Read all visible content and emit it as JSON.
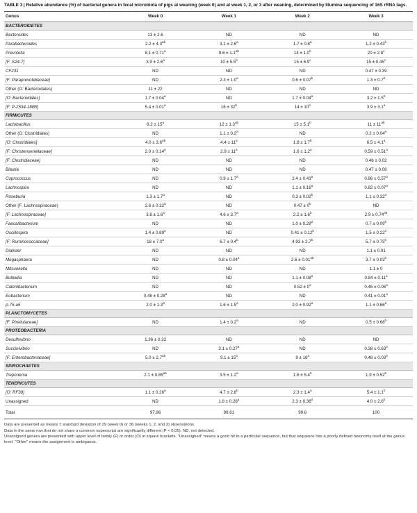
{
  "caption": {
    "label": "TABLE 3 |",
    "text": "Relative abundance (%) of bacterial genera in fecal microbiota of pigs at weaning (week 0) and at week 1, 2, or 3 after weaning, determined by Illumina sequencing of 16S rRNA tags."
  },
  "headers": [
    "Genus",
    "Week 0",
    "Week 1",
    "Week 2",
    "Week 3"
  ],
  "sections": [
    {
      "phylum": "BACTEROIDETES",
      "rows": [
        {
          "genus": "Bacteroides",
          "italic": true,
          "cells": [
            [
              "13 ± 2.6",
              ""
            ],
            [
              "ND",
              ""
            ],
            [
              "ND",
              ""
            ],
            [
              "ND",
              ""
            ]
          ]
        },
        {
          "genus": "Parabacteroides",
          "italic": true,
          "cells": [
            [
              "2.2 ± 4.3",
              "ab"
            ],
            [
              "3.1 ± 2.6",
              "a"
            ],
            [
              "1.7 ± 0.8",
              "a"
            ],
            [
              "1.2 ± 0.43",
              "b"
            ]
          ]
        },
        {
          "genus": "Prevotella",
          "italic": true,
          "cells": [
            [
              "8.1 ± 0.71",
              "a"
            ],
            [
              "9.6 ± 1.1",
              "ab"
            ],
            [
              "14 ± 1.0",
              "b"
            ],
            [
              "20 ± 2.8",
              "c"
            ]
          ]
        },
        {
          "genus": "[F: S24-7]",
          "italic": true,
          "cells": [
            [
              "3.9 ± 2.6",
              "a"
            ],
            [
              "10 ± 5.5",
              "b"
            ],
            [
              "15 ± 6.9",
              "c"
            ],
            [
              "15 ± 0.45",
              "c"
            ]
          ]
        },
        {
          "genus": "CF231",
          "italic": true,
          "cells": [
            [
              "ND",
              ""
            ],
            [
              "ND",
              ""
            ],
            [
              "ND",
              ""
            ],
            [
              "0.47 ± 0.39",
              ""
            ]
          ]
        },
        {
          "genus": "[F: Paraprevotellaceae]",
          "italic": true,
          "cells": [
            [
              "ND",
              ""
            ],
            [
              "2.3 ± 1.0",
              "a"
            ],
            [
              "0.6 ± 0.07",
              "b"
            ],
            [
              "1.3 ± 0.7",
              "b"
            ]
          ]
        },
        {
          "genus": "Other (O: Bacteroidales)",
          "italic": false,
          "cells": [
            [
              "11 ± 22",
              ""
            ],
            [
              "ND",
              ""
            ],
            [
              "ND",
              ""
            ],
            [
              "ND",
              ""
            ]
          ]
        },
        {
          "genus": "[O: Bacteroidales]",
          "italic": true,
          "cells": [
            [
              "1.7 ± 0.04",
              "a"
            ],
            [
              "ND",
              ""
            ],
            [
              "1.7 ± 0.04",
              "a"
            ],
            [
              "3.2 ± 1.5",
              "b"
            ]
          ]
        },
        {
          "genus": "[F: P-2534-18B5]",
          "italic": true,
          "cells": [
            [
              "5.4 ± 0.01",
              "a"
            ],
            [
              "16 ± 32",
              "b"
            ],
            [
              "14 ± 10",
              "b"
            ],
            [
              "3.9 ± 3.1",
              "a"
            ]
          ]
        }
      ]
    },
    {
      "phylum": "FIRMICUTES",
      "rows": [
        {
          "genus": "Lactobacillus",
          "italic": true,
          "cells": [
            [
              "8.2 ± 15",
              "a"
            ],
            [
              "12 ± 1.3",
              "ab"
            ],
            [
              "15 ± 5.1",
              "b"
            ],
            [
              "11 ± 11",
              "ab"
            ]
          ]
        },
        {
          "genus": "Other (O: Clostridiales)",
          "italic": false,
          "cells": [
            [
              "ND",
              ""
            ],
            [
              "1.1 ± 0.2",
              "a"
            ],
            [
              "ND",
              ""
            ],
            [
              "0.2 ± 0.04",
              "a"
            ]
          ]
        },
        {
          "genus": "[O: Clostridiales]",
          "italic": true,
          "cells": [
            [
              "4.0 ± 3.6",
              "ab"
            ],
            [
              "4.4 ± 11",
              "a"
            ],
            [
              "1.8 ± 1.7",
              "b"
            ],
            [
              "6.5 ± 4.1",
              "a"
            ]
          ]
        },
        {
          "genus": "[F: Christensenellaceae]",
          "italic": true,
          "cells": [
            [
              "2.0 ± 0.14",
              "a"
            ],
            [
              "2.9 ± 11",
              "a"
            ],
            [
              "1.6 ± 1.2",
              "a"
            ],
            [
              "0.59 ± 0.51",
              "a"
            ]
          ]
        },
        {
          "genus": "[F: Clostridiaceae]",
          "italic": true,
          "cells": [
            [
              "ND",
              ""
            ],
            [
              "ND",
              ""
            ],
            [
              "ND",
              ""
            ],
            [
              "0.46 ± 0.02",
              ""
            ]
          ]
        },
        {
          "genus": "Blautia",
          "italic": true,
          "cells": [
            [
              "ND",
              ""
            ],
            [
              "ND",
              ""
            ],
            [
              "ND",
              ""
            ],
            [
              "0.47 ± 0.08",
              ""
            ]
          ]
        },
        {
          "genus": "Coprococcus",
          "italic": true,
          "cells": [
            [
              "ND",
              ""
            ],
            [
              "0.9 ± 1.7",
              "a"
            ],
            [
              "2.4 ± 0.43",
              "a"
            ],
            [
              "0.86 ± 0.57",
              "a"
            ]
          ]
        },
        {
          "genus": "Lachnospira",
          "italic": true,
          "cells": [
            [
              "ND",
              ""
            ],
            [
              "ND",
              ""
            ],
            [
              "1.1 ± 0.16",
              "a"
            ],
            [
              "0.82 ± 0.07",
              "a"
            ]
          ]
        },
        {
          "genus": "Roseburia",
          "italic": true,
          "cells": [
            [
              "1.3 ± 1.7",
              "a"
            ],
            [
              "ND",
              ""
            ],
            [
              "0.3 ± 0.02",
              "b"
            ],
            [
              "1.1 ± 0.32",
              "a"
            ]
          ]
        },
        {
          "genus": "Other (F: Lachnospiraceae)",
          "italic": false,
          "cells": [
            [
              "2.6 ± 0.32",
              "a"
            ],
            [
              "ND",
              ""
            ],
            [
              "0.47 ± 0",
              "b"
            ],
            [
              "ND",
              ""
            ]
          ]
        },
        {
          "genus": "[F: Lachnospiraceae]",
          "italic": true,
          "cells": [
            [
              "3.8 ± 1.6",
              "a"
            ],
            [
              "4.6 ± 3.7",
              "a"
            ],
            [
              "2.2 ± 1.6",
              "b"
            ],
            [
              "2.9 ± 0.74",
              "ab"
            ]
          ]
        },
        {
          "genus": "Faecalibacterium",
          "italic": true,
          "cells": [
            [
              "ND",
              ""
            ],
            [
              "ND",
              ""
            ],
            [
              "1.0 ± 0.29",
              "a"
            ],
            [
              "0.7 ± 0.09",
              "b"
            ]
          ]
        },
        {
          "genus": "Oscillospira",
          "italic": true,
          "cells": [
            [
              "1.4 ± 0.89",
              "a"
            ],
            [
              "ND",
              ""
            ],
            [
              "0.41 ± 0.12",
              "b"
            ],
            [
              "1.5 ± 0.22",
              "a"
            ]
          ]
        },
        {
          "genus": "[F: Ruminococcaceae]",
          "italic": true,
          "cells": [
            [
              "18 ± 7.0",
              "a"
            ],
            [
              "6.7 ± 0.4",
              "b"
            ],
            [
              "4.93 ± 2.7",
              "b"
            ],
            [
              "5.7 ± 0.75",
              "b"
            ]
          ]
        },
        {
          "genus": "Dialister",
          "italic": true,
          "cells": [
            [
              "ND",
              ""
            ],
            [
              "ND",
              ""
            ],
            [
              "ND",
              ""
            ],
            [
              "1.1 ± 0.01",
              ""
            ]
          ]
        },
        {
          "genus": "Megasphaera",
          "italic": true,
          "cells": [
            [
              "ND",
              ""
            ],
            [
              "0.8 ± 0.04",
              "a"
            ],
            [
              "2.6 ± 0.01",
              "ab"
            ],
            [
              "3.7 ± 0.03",
              "b"
            ]
          ]
        },
        {
          "genus": "Mitsuokella",
          "italic": true,
          "cells": [
            [
              "ND",
              ""
            ],
            [
              "ND",
              ""
            ],
            [
              "ND",
              ""
            ],
            [
              "1.1 ± 0",
              ""
            ]
          ]
        },
        {
          "genus": "Bulleidia",
          "italic": true,
          "cells": [
            [
              "ND",
              ""
            ],
            [
              "ND",
              ""
            ],
            [
              "1.1 ± 0.08",
              "a"
            ],
            [
              "0.84 ± 0.11",
              "a"
            ]
          ]
        },
        {
          "genus": "Catenibacterium",
          "italic": true,
          "cells": [
            [
              "ND",
              ""
            ],
            [
              "ND",
              ""
            ],
            [
              "0.52 ± 0",
              "a"
            ],
            [
              "0.46 ± 0.06",
              "a"
            ]
          ]
        },
        {
          "genus": "Eubacterium",
          "italic": true,
          "cells": [
            [
              "0.48 ± 0.28",
              "a"
            ],
            [
              "ND",
              ""
            ],
            [
              "ND",
              ""
            ],
            [
              "0.41 ± 0.01",
              "a"
            ]
          ]
        },
        {
          "genus": "p-75-a5",
          "italic": true,
          "cells": [
            [
              "2.0 ± 1.3",
              "a"
            ],
            [
              "1.6 ± 1.5",
              "a"
            ],
            [
              "2.0 ± 0.92",
              "a"
            ],
            [
              "1.1 ± 0.66",
              "a"
            ]
          ]
        }
      ]
    },
    {
      "phylum": "PLANCTOMYCETES",
      "rows": [
        {
          "genus": "[F: Pirellulaceae]",
          "italic": true,
          "cells": [
            [
              "ND",
              ""
            ],
            [
              "1.4 ± 0.2",
              "a"
            ],
            [
              "ND",
              ""
            ],
            [
              "0.5 ± 0.68",
              "b"
            ]
          ]
        }
      ]
    },
    {
      "phylum": "PROTEOBACTERIA",
      "rows": [
        {
          "genus": "Desulfovibrio",
          "italic": true,
          "cells": [
            [
              "1.36 ± 0.32",
              ""
            ],
            [
              "ND",
              ""
            ],
            [
              "ND",
              ""
            ],
            [
              "ND",
              ""
            ]
          ]
        },
        {
          "genus": "Succinivibrio",
          "italic": true,
          "cells": [
            [
              "ND",
              ""
            ],
            [
              "3.1 ± 0.27",
              "a"
            ],
            [
              "ND",
              ""
            ],
            [
              "0.38 ± 0.63",
              "b"
            ]
          ]
        },
        {
          "genus": "[F: Enterobacteriaceae]",
          "italic": true,
          "cells": [
            [
              "5.0 ± 2.7",
              "ab"
            ],
            [
              "9.1 ± 15",
              "a"
            ],
            [
              "9 ± 16",
              "a"
            ],
            [
              "0.48 ± 0.03",
              "b"
            ]
          ]
        }
      ]
    },
    {
      "phylum": "SPIROCHAETES",
      "rows": [
        {
          "genus": "Treponema",
          "italic": true,
          "cells": [
            [
              "2.1 ± 0.85",
              "ab"
            ],
            [
              "3.5 ± 1.2",
              "a"
            ],
            [
              "1.6 ± 5.4",
              "b"
            ],
            [
              "1.9 ± 0.52",
              "b"
            ]
          ]
        }
      ]
    },
    {
      "phylum": "TENERICUTES",
      "rows": [
        {
          "genus": "[O: RF39]",
          "italic": true,
          "cells": [
            [
              "1.1 ± 0.26",
              "a"
            ],
            [
              "4.7 ± 2.8",
              "b"
            ],
            [
              "2.3 ± 1.4",
              "a"
            ],
            [
              "5.4 ± 1.1",
              "b"
            ]
          ]
        },
        {
          "genus": "Unassigned",
          "italic": false,
          "cells": [
            [
              "ND",
              ""
            ],
            [
              "1.8 ± 0.28",
              "a"
            ],
            [
              "2.3 ± 0.36",
              "a"
            ],
            [
              "4.0 ± 2.6",
              "b"
            ]
          ]
        }
      ]
    }
  ],
  "total": {
    "label": "Total",
    "values": [
      "97.96",
      "99.61",
      "99.6",
      "100"
    ]
  },
  "notes": [
    "Data are presented as means ± standard deviation of 29 (week 0) or 36 (weeks 1, 2, and 3) observations.",
    "Data in the same row that do not share a common superscript are significantly different (P < 0.05). ND, not detected.",
    "Unassigned genera are presented with upper level of family (F) or order (O) in square brackets. \"Unassigned\" means a good hit to a particular sequence, but that sequence has a poorly defined taxonomy itself at the genus level. \"Other\" means the assignment is ambiguous."
  ]
}
